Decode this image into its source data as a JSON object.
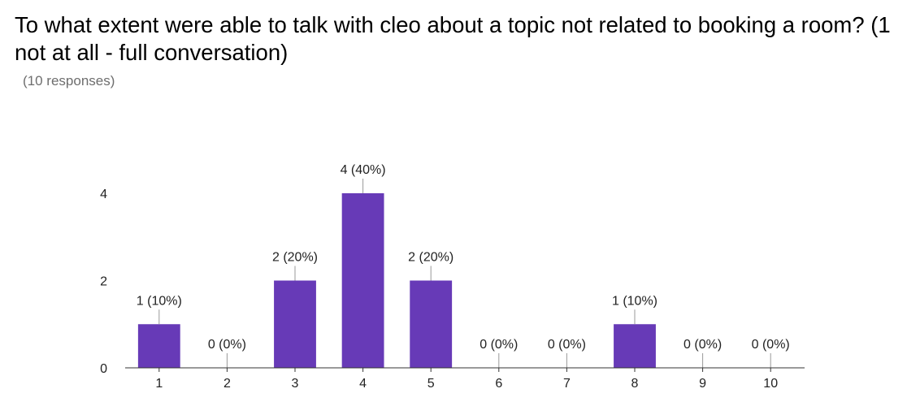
{
  "header": {
    "title": "To what extent were able to talk with cleo about a topic not related to booking a room? (1 not at all - full conversation)",
    "responses": "(10 responses)"
  },
  "chart_data": {
    "type": "bar",
    "title": "To what extent were able to talk with cleo about a topic not related to booking a room? (1 not at all - full conversation)",
    "subtitle": "(10 responses)",
    "categories": [
      "1",
      "2",
      "3",
      "4",
      "5",
      "6",
      "7",
      "8",
      "9",
      "10"
    ],
    "values": [
      1,
      0,
      2,
      4,
      2,
      0,
      0,
      1,
      0,
      0
    ],
    "data_labels": [
      "1 (10%)",
      "0 (0%)",
      "2 (20%)",
      "4 (40%)",
      "2 (20%)",
      "0 (0%)",
      "0 (0%)",
      "1 (10%)",
      "0 (0%)",
      "0 (0%)"
    ],
    "y_ticks": [
      "0",
      "2",
      "4"
    ],
    "ylim": [
      0,
      4
    ],
    "xlabel": "",
    "ylabel": "",
    "grid": false,
    "legend": "none",
    "bar_color": "#673ab7"
  }
}
